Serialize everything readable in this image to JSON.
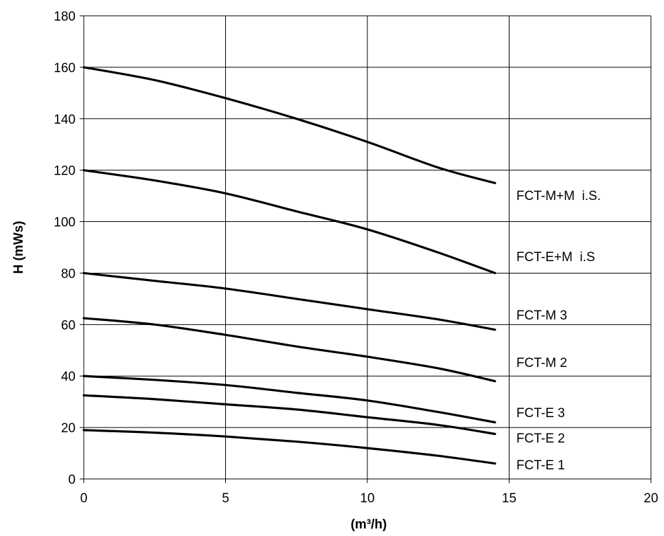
{
  "chart_data": {
    "type": "line",
    "title": "",
    "xlabel": "(m³/h)",
    "ylabel": "H (mWs)",
    "xlim": [
      0,
      20
    ],
    "ylim": [
      0,
      180
    ],
    "x_ticks": [
      0,
      5,
      10,
      15,
      20
    ],
    "y_ticks": [
      0,
      20,
      40,
      60,
      80,
      100,
      120,
      140,
      160,
      180
    ],
    "grid": true,
    "legend": "none",
    "series": [
      {
        "name": "FCT-M+M  i.S.",
        "x": [
          0,
          2.5,
          5,
          7.5,
          10,
          12.5,
          14.5
        ],
        "y": [
          160,
          155,
          148,
          140,
          131,
          121,
          115
        ]
      },
      {
        "name": "FCT-E+M  i.S",
        "x": [
          0,
          2.5,
          5,
          7.5,
          10,
          12.5,
          14.5
        ],
        "y": [
          120,
          116,
          111,
          104,
          97,
          88,
          80
        ]
      },
      {
        "name": "FCT-M 3",
        "x": [
          0,
          2.5,
          5,
          7.5,
          10,
          12.5,
          14.5
        ],
        "y": [
          80,
          77,
          74,
          70,
          66,
          62,
          58
        ]
      },
      {
        "name": "FCT-M 2",
        "x": [
          0,
          2.5,
          5,
          7.5,
          10,
          12.5,
          14.5
        ],
        "y": [
          62.5,
          60,
          56,
          51.5,
          47.5,
          43,
          38
        ]
      },
      {
        "name": "FCT-E 3",
        "x": [
          0,
          2.5,
          5,
          7.5,
          10,
          12.5,
          14.5
        ],
        "y": [
          40,
          38.5,
          36.5,
          33.5,
          30.5,
          26,
          22
        ]
      },
      {
        "name": "FCT-E 2",
        "x": [
          0,
          2.5,
          5,
          7.5,
          10,
          12.5,
          14.5
        ],
        "y": [
          32.5,
          31,
          29,
          27,
          24,
          21,
          17.5
        ]
      },
      {
        "name": "FCT-E 1",
        "x": [
          0,
          2.5,
          5,
          7.5,
          10,
          12.5,
          14.5
        ],
        "y": [
          19,
          18,
          16.5,
          14.5,
          12,
          9,
          6
        ]
      }
    ]
  }
}
